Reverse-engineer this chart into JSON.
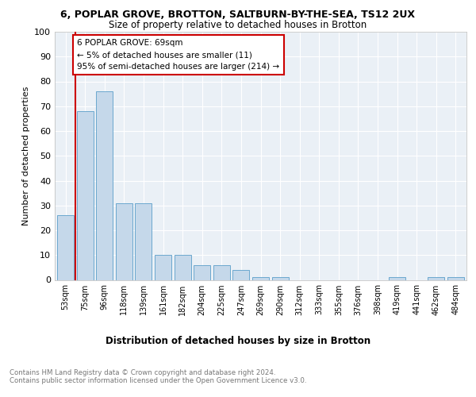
{
  "title1": "6, POPLAR GROVE, BROTTON, SALTBURN-BY-THE-SEA, TS12 2UX",
  "title2": "Size of property relative to detached houses in Brotton",
  "xlabel": "Distribution of detached houses by size in Brotton",
  "ylabel": "Number of detached properties",
  "footnote": "Contains HM Land Registry data © Crown copyright and database right 2024.\nContains public sector information licensed under the Open Government Licence v3.0.",
  "categories": [
    "53sqm",
    "75sqm",
    "96sqm",
    "118sqm",
    "139sqm",
    "161sqm",
    "182sqm",
    "204sqm",
    "225sqm",
    "247sqm",
    "269sqm",
    "290sqm",
    "312sqm",
    "333sqm",
    "355sqm",
    "376sqm",
    "398sqm",
    "419sqm",
    "441sqm",
    "462sqm",
    "484sqm"
  ],
  "values": [
    26,
    68,
    76,
    31,
    31,
    10,
    10,
    6,
    6,
    4,
    1,
    1,
    0,
    0,
    0,
    0,
    0,
    1,
    0,
    1,
    1
  ],
  "bar_color": "#c5d8ea",
  "bar_edge_color": "#5a9ec9",
  "annotation_box_text": "6 POPLAR GROVE: 69sqm\n← 5% of detached houses are smaller (11)\n95% of semi-detached houses are larger (214) →",
  "annotation_box_color": "#ffffff",
  "annotation_box_edge_color": "#cc0000",
  "marker_line_color": "#cc0000",
  "background_color": "#eaf0f6",
  "ylim": [
    0,
    100
  ],
  "yticks": [
    0,
    10,
    20,
    30,
    40,
    50,
    60,
    70,
    80,
    90,
    100
  ]
}
